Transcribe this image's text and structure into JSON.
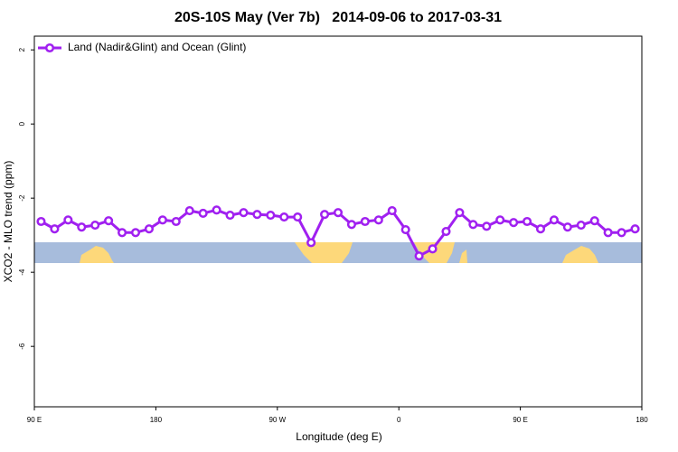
{
  "chart_data": {
    "type": "line",
    "title": "20S-10S May (Ver 7b)   2014-09-06 to 2017-03-31",
    "xlabel": "Longitude (deg E)",
    "ylabel": "XCO2 - MLO trend (ppm)",
    "x": [
      95,
      105,
      115,
      125,
      135,
      145,
      155,
      165,
      175,
      185,
      195,
      205,
      215,
      225,
      235,
      245,
      255,
      265,
      275,
      285,
      295,
      305,
      315,
      325,
      335,
      345,
      355,
      365,
      375,
      385,
      395,
      405,
      415,
      425,
      435,
      445,
      455,
      465,
      475,
      485,
      495,
      505,
      515,
      525,
      535
    ],
    "series": [
      {
        "name": "Land (Nadir&Glint) and Ocean (Glint)",
        "color": "#a020f0",
        "values": [
          -2.63,
          -2.83,
          -2.59,
          -2.78,
          -2.73,
          -2.61,
          -2.93,
          -2.93,
          -2.83,
          -2.59,
          -2.63,
          -2.34,
          -2.41,
          -2.32,
          -2.46,
          -2.39,
          -2.44,
          -2.46,
          -2.51,
          -2.51,
          -3.2,
          -2.44,
          -2.39,
          -2.71,
          -2.63,
          -2.59,
          -2.34,
          -2.85,
          -3.56,
          -3.37,
          -2.9,
          -2.39,
          -2.71,
          -2.76,
          -2.59,
          -2.66,
          -2.63,
          -2.83,
          -2.59,
          -2.78,
          -2.73,
          -2.61,
          -2.93,
          -2.93,
          -2.83
        ]
      }
    ],
    "xlim": [
      90,
      540
    ],
    "xticks": [
      {
        "value": 90,
        "label": "90 E"
      },
      180,
      {
        "value": 270,
        "label": "90 W"
      },
      {
        "value": 360,
        "label": "0"
      },
      {
        "value": 450,
        "label": "90 E"
      },
      {
        "value": 540,
        "label": "180"
      }
    ],
    "ylim": [
      -7.63,
      2.37
    ],
    "yticks": [
      2,
      0,
      -2,
      -4,
      -6
    ],
    "legend": "top-left",
    "grid": false
  }
}
